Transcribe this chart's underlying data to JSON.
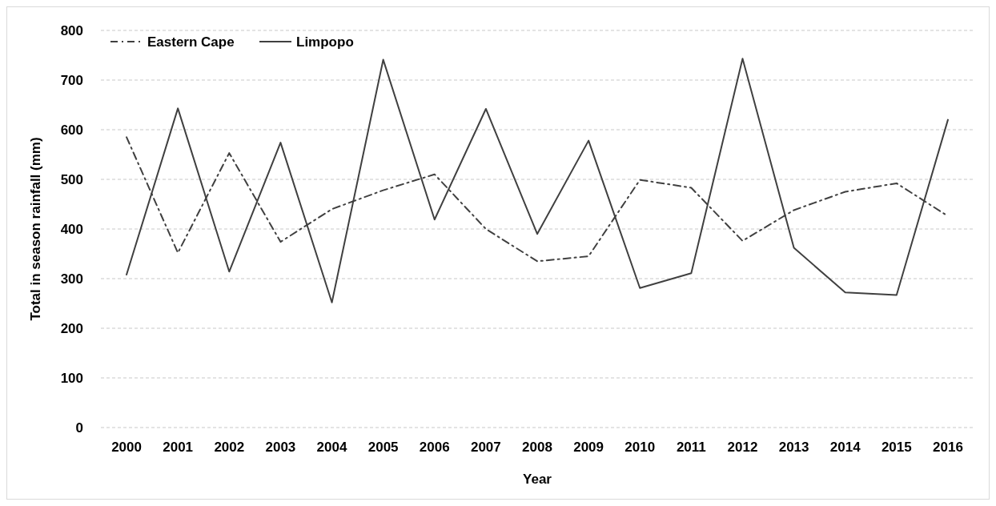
{
  "chart_data": {
    "type": "line",
    "xlabel": "Year",
    "ylabel": "Total in season rainfall (mm)",
    "categories": [
      "2000",
      "2001",
      "2002",
      "2003",
      "2004",
      "2005",
      "2006",
      "2007",
      "2008",
      "2009",
      "2010",
      "2011",
      "2012",
      "2013",
      "2014",
      "2015",
      "2016"
    ],
    "series": [
      {
        "name": "Eastern Cape",
        "color": "#404040",
        "line_style": "dashed",
        "values": [
          585,
          352,
          553,
          374,
          440,
          478,
          510,
          400,
          335,
          345,
          499,
          483,
          376,
          438,
          475,
          492,
          426
        ]
      },
      {
        "name": "Limpopo",
        "color": "#404040",
        "line_style": "solid",
        "values": [
          308,
          643,
          314,
          574,
          252,
          741,
          419,
          642,
          390,
          578,
          281,
          311,
          743,
          362,
          272,
          267,
          620
        ]
      }
    ],
    "ylim": [
      0,
      800
    ],
    "yticks": [
      0,
      100,
      200,
      300,
      400,
      500,
      600,
      700,
      800
    ],
    "grid": "y",
    "legend": "top left",
    "marker": "none"
  }
}
